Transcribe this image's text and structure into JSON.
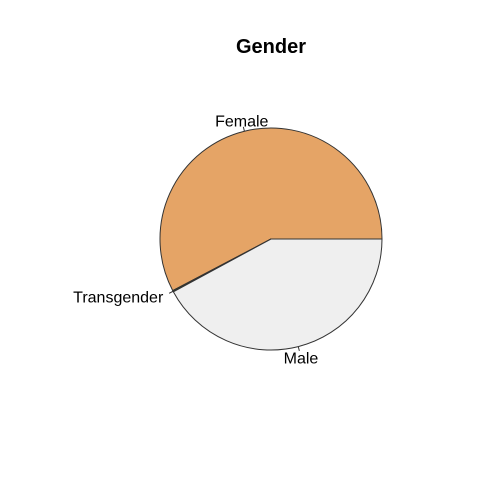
{
  "chart_data": {
    "type": "pie",
    "title": "Gender",
    "start_angle_deg": 0,
    "direction": "counterclockwise",
    "slices": [
      {
        "label": "Female",
        "value": 0.577,
        "color": "#E5A466"
      },
      {
        "label": "Transgender",
        "value": 0.002,
        "color": "#3C4A1E"
      },
      {
        "label": "Male",
        "value": 0.421,
        "color": "#EFEFEF"
      }
    ]
  }
}
